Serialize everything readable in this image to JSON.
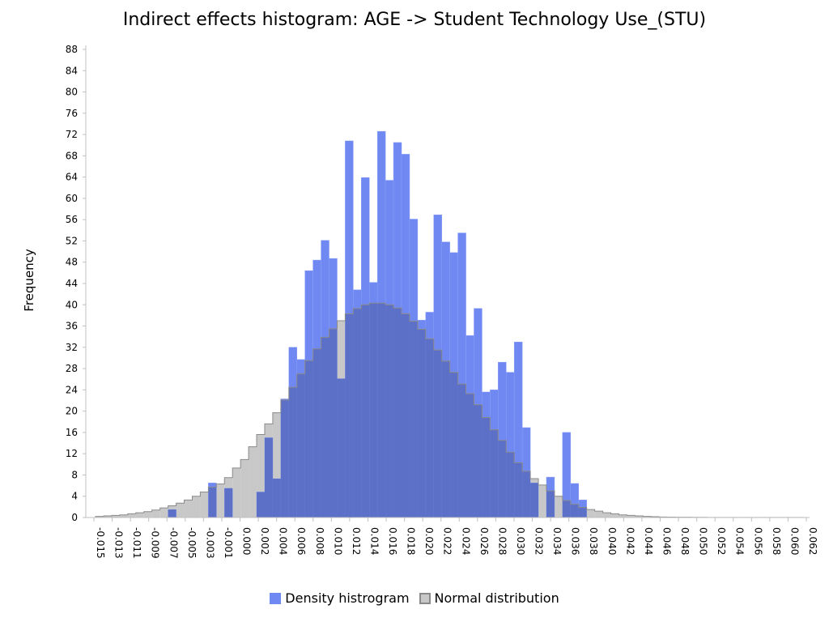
{
  "chart_data": {
    "type": "bar",
    "title": "Indirect effects histogram: AGE -> Student Technology Use_(STU)",
    "ylabel": "Frequency",
    "xlabel": "",
    "ylim": [
      0,
      88
    ],
    "yticks": [
      0,
      4,
      8,
      12,
      16,
      20,
      24,
      28,
      32,
      36,
      40,
      44,
      48,
      52,
      56,
      60,
      64,
      68,
      72,
      76,
      80,
      84,
      88
    ],
    "xlim": [
      -0.015,
      0.062
    ],
    "xticks": [
      "-0.015",
      "-0.013",
      "-0.011",
      "-0.009",
      "-0.007",
      "-0.005",
      "-0.003",
      "-0.001",
      "0.000",
      "0.002",
      "0.004",
      "0.006",
      "0.008",
      "0.010",
      "0.012",
      "0.014",
      "0.016",
      "0.018",
      "0.020",
      "0.022",
      "0.024",
      "0.026",
      "0.028",
      "0.030",
      "0.032",
      "0.034",
      "0.036",
      "0.038",
      "0.040",
      "0.042",
      "0.044",
      "0.046",
      "0.048",
      "0.050",
      "0.052",
      "0.054",
      "0.056",
      "0.058",
      "0.060",
      "0.062"
    ],
    "grid": false,
    "legend_position": "bottom",
    "series": [
      {
        "name": "Density histrogram",
        "color": "#6f88f2",
        "bin_width": 0.00087,
        "bins": [
          {
            "x": -0.00698,
            "y": 1.5
          },
          {
            "x": -0.00437,
            "y": 0
          },
          {
            "x": -0.0035,
            "y": 0
          },
          {
            "x": -0.00263,
            "y": 6.5
          },
          {
            "x": -0.00089,
            "y": 5.5
          },
          {
            "x": 0.00259,
            "y": 4.8
          },
          {
            "x": 0.00346,
            "y": 15
          },
          {
            "x": 0.00433,
            "y": 7.3
          },
          {
            "x": 0.0052,
            "y": 22.3
          },
          {
            "x": 0.00607,
            "y": 32
          },
          {
            "x": 0.00694,
            "y": 29.7
          },
          {
            "x": 0.00781,
            "y": 46.4
          },
          {
            "x": 0.00868,
            "y": 48.4
          },
          {
            "x": 0.00955,
            "y": 52.1
          },
          {
            "x": 0.01042,
            "y": 48.7
          },
          {
            "x": 0.01129,
            "y": 26.1
          },
          {
            "x": 0.01216,
            "y": 70.8
          },
          {
            "x": 0.01303,
            "y": 42.8
          },
          {
            "x": 0.0139,
            "y": 63.9
          },
          {
            "x": 0.01477,
            "y": 44.2
          },
          {
            "x": 0.01564,
            "y": 72.6
          },
          {
            "x": 0.01651,
            "y": 63.4
          },
          {
            "x": 0.01738,
            "y": 70.5
          },
          {
            "x": 0.01825,
            "y": 68.3
          },
          {
            "x": 0.01912,
            "y": 56.1
          },
          {
            "x": 0.01999,
            "y": 37.1
          },
          {
            "x": 0.02086,
            "y": 38.6
          },
          {
            "x": 0.02173,
            "y": 56.9
          },
          {
            "x": 0.0226,
            "y": 51.8
          },
          {
            "x": 0.02347,
            "y": 49.8
          },
          {
            "x": 0.02434,
            "y": 53.5
          },
          {
            "x": 0.02521,
            "y": 34.2
          },
          {
            "x": 0.02608,
            "y": 39.3
          },
          {
            "x": 0.02695,
            "y": 23.6
          },
          {
            "x": 0.02782,
            "y": 24
          },
          {
            "x": 0.02869,
            "y": 29.2
          },
          {
            "x": 0.02956,
            "y": 27.3
          },
          {
            "x": 0.03043,
            "y": 33
          },
          {
            "x": 0.0313,
            "y": 16.9
          },
          {
            "x": 0.03217,
            "y": 6.5
          },
          {
            "x": 0.03304,
            "y": 0
          },
          {
            "x": 0.03391,
            "y": 7.6
          },
          {
            "x": 0.03478,
            "y": 0
          },
          {
            "x": 0.03565,
            "y": 16
          },
          {
            "x": 0.03652,
            "y": 6.4
          },
          {
            "x": 0.03739,
            "y": 3.3
          }
        ]
      },
      {
        "name": "Normal distribution",
        "color": "#c8c8c8",
        "bin_width": 0.00087,
        "bins": [
          {
            "x": -0.01482,
            "y": 0.2
          },
          {
            "x": -0.01395,
            "y": 0.3
          },
          {
            "x": -0.01308,
            "y": 0.4
          },
          {
            "x": -0.01221,
            "y": 0.5
          },
          {
            "x": -0.01134,
            "y": 0.7
          },
          {
            "x": -0.01047,
            "y": 0.9
          },
          {
            "x": -0.0096,
            "y": 1.1
          },
          {
            "x": -0.00873,
            "y": 1.4
          },
          {
            "x": -0.00785,
            "y": 1.8
          },
          {
            "x": -0.00698,
            "y": 2.2
          },
          {
            "x": -0.00611,
            "y": 2.7
          },
          {
            "x": -0.00524,
            "y": 3.3
          },
          {
            "x": -0.00437,
            "y": 4
          },
          {
            "x": -0.0035,
            "y": 4.8
          },
          {
            "x": -0.00263,
            "y": 5.7
          },
          {
            "x": -0.00176,
            "y": 6.3
          },
          {
            "x": -0.00089,
            "y": 7.5
          },
          {
            "x": -2e-05,
            "y": 9.3
          },
          {
            "x": 0.00085,
            "y": 10.9
          },
          {
            "x": 0.00172,
            "y": 13.3
          },
          {
            "x": 0.00259,
            "y": 15.6
          },
          {
            "x": 0.00346,
            "y": 17.6
          },
          {
            "x": 0.00433,
            "y": 19.7
          },
          {
            "x": 0.0052,
            "y": 22.1
          },
          {
            "x": 0.00607,
            "y": 24.5
          },
          {
            "x": 0.00694,
            "y": 27
          },
          {
            "x": 0.00781,
            "y": 29.5
          },
          {
            "x": 0.00868,
            "y": 31.7
          },
          {
            "x": 0.00955,
            "y": 33.9
          },
          {
            "x": 0.01042,
            "y": 35.5
          },
          {
            "x": 0.01129,
            "y": 37
          },
          {
            "x": 0.01216,
            "y": 38.3
          },
          {
            "x": 0.01303,
            "y": 39.3
          },
          {
            "x": 0.0139,
            "y": 40
          },
          {
            "x": 0.01477,
            "y": 40.3
          },
          {
            "x": 0.01564,
            "y": 40.3
          },
          {
            "x": 0.01651,
            "y": 40
          },
          {
            "x": 0.01738,
            "y": 39.4
          },
          {
            "x": 0.01825,
            "y": 38.3
          },
          {
            "x": 0.01912,
            "y": 36.9
          },
          {
            "x": 0.01999,
            "y": 35.4
          },
          {
            "x": 0.02086,
            "y": 33.6
          },
          {
            "x": 0.02173,
            "y": 31.5
          },
          {
            "x": 0.0226,
            "y": 29.4
          },
          {
            "x": 0.02347,
            "y": 27.3
          },
          {
            "x": 0.02434,
            "y": 25.1
          },
          {
            "x": 0.02521,
            "y": 23.3
          },
          {
            "x": 0.02608,
            "y": 21.2
          },
          {
            "x": 0.02695,
            "y": 18.8
          },
          {
            "x": 0.02782,
            "y": 16.5
          },
          {
            "x": 0.02869,
            "y": 14.5
          },
          {
            "x": 0.02956,
            "y": 12.3
          },
          {
            "x": 0.03043,
            "y": 10.3
          },
          {
            "x": 0.0313,
            "y": 8.7
          },
          {
            "x": 0.03217,
            "y": 7.3
          },
          {
            "x": 0.03304,
            "y": 6.1
          },
          {
            "x": 0.03391,
            "y": 5
          },
          {
            "x": 0.03478,
            "y": 4
          },
          {
            "x": 0.03565,
            "y": 3.2
          },
          {
            "x": 0.03652,
            "y": 2.5
          },
          {
            "x": 0.03739,
            "y": 1.9
          },
          {
            "x": 0.03826,
            "y": 1.5
          },
          {
            "x": 0.03913,
            "y": 1.2
          },
          {
            "x": 0.04,
            "y": 0.9
          },
          {
            "x": 0.04087,
            "y": 0.7
          },
          {
            "x": 0.04174,
            "y": 0.5
          },
          {
            "x": 0.04261,
            "y": 0.4
          },
          {
            "x": 0.04348,
            "y": 0.3
          },
          {
            "x": 0.04435,
            "y": 0.2
          },
          {
            "x": 0.04522,
            "y": 0.15
          },
          {
            "x": 0.04609,
            "y": 0.1
          },
          {
            "x": 0.04696,
            "y": 0.08
          },
          {
            "x": 0.04783,
            "y": 0.06
          },
          {
            "x": 0.0487,
            "y": 0.05
          },
          {
            "x": 0.04957,
            "y": 0.04
          },
          {
            "x": 0.05044,
            "y": 0.03
          },
          {
            "x": 0.05131,
            "y": 0.02
          },
          {
            "x": 0.05218,
            "y": 0.02
          },
          {
            "x": 0.05305,
            "y": 0.01
          },
          {
            "x": 0.05392,
            "y": 0.01
          },
          {
            "x": 0.05479,
            "y": 0.01
          },
          {
            "x": 0.05566,
            "y": 0.01
          },
          {
            "x": 0.05653,
            "y": 0.01
          },
          {
            "x": 0.0574,
            "y": 0.01
          },
          {
            "x": 0.05827,
            "y": 0.01
          },
          {
            "x": 0.05914,
            "y": 0.01
          },
          {
            "x": 0.06001,
            "y": 0.01
          },
          {
            "x": 0.06088,
            "y": 0.01
          }
        ]
      }
    ],
    "overlap_color": "#5d70c8"
  }
}
